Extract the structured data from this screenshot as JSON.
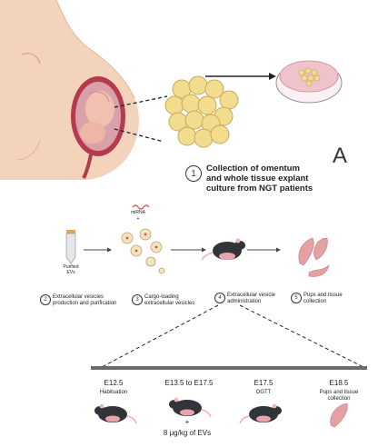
{
  "panel_letter": "A",
  "step1": {
    "number": "1",
    "text_line1": "Collection of omentum",
    "text_line2": "and whole tissue explant",
    "text_line3": "culture from NGT patients"
  },
  "pipeline": {
    "tube_label_line1": "Purified",
    "tube_label_line2": "EVs",
    "mirna_label": "miRNA",
    "plus_sign": "+",
    "steps": [
      {
        "number": "2",
        "line1": "Extracellular vesicles",
        "line2": "production and purification"
      },
      {
        "number": "3",
        "line1": "Cargo-loading",
        "line2": "extracellular vesicles"
      },
      {
        "number": "4",
        "line1": "Extracellular vesicle",
        "line2": "administration"
      },
      {
        "number": "5",
        "line1": "Pups and tissue",
        "line2": "collection"
      }
    ]
  },
  "timeline": {
    "points": [
      {
        "day": "E12.5",
        "desc": "Habituation",
        "desc2": ""
      },
      {
        "day": "E13.5 to E17.5",
        "desc": "",
        "desc2": ""
      },
      {
        "day": "E17.5",
        "desc": "OGTT",
        "desc2": ""
      },
      {
        "day": "E18.5",
        "desc": "Pups and tissue",
        "desc2": "collection"
      }
    ],
    "plus_sign": "+",
    "dose": "8 μg/kg of EVs"
  },
  "colors": {
    "skin": "#f4d3bd",
    "skin_dark": "#e7b89c",
    "uterus": "#b53a4e",
    "fetus": "#f1c0b0",
    "fat": "#f2dc8e",
    "dish": "#f0c3cc",
    "mouse": "#33343a",
    "pup": "#e5a0a4",
    "timeline_bar": "#6b6b6b"
  }
}
